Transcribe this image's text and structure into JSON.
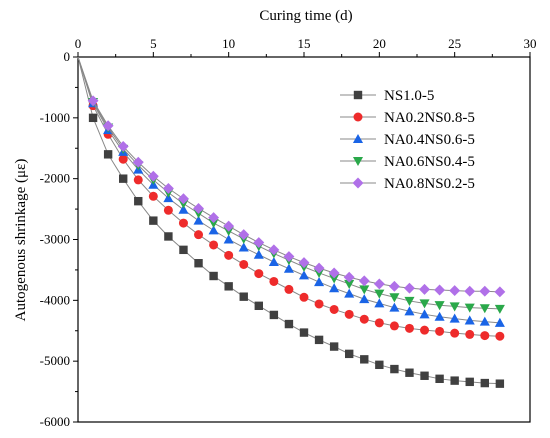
{
  "chart_data": {
    "type": "line",
    "xlabel": "Curing time (d)",
    "ylabel": "Autogenous shrinkage (με)",
    "xlim": [
      0,
      30
    ],
    "ylim": [
      -6000,
      0
    ],
    "xticks": [
      "0",
      "5",
      "10",
      "15",
      "20",
      "25",
      "30"
    ],
    "yticks": [
      "0",
      "-1000",
      "-2000",
      "-3000",
      "-4000",
      "-5000",
      "-6000"
    ],
    "x_axis_position": "top",
    "legend": "right-middle",
    "grid": false,
    "x": [
      0,
      1,
      2,
      3,
      4,
      5,
      6,
      7,
      8,
      9,
      10,
      11,
      12,
      13,
      14,
      15,
      16,
      17,
      18,
      19,
      20,
      21,
      22,
      23,
      24,
      25,
      26,
      27,
      28
    ],
    "series": [
      {
        "name": "NS1.0-5",
        "color": "#404040",
        "marker": "square",
        "values": [
          0,
          -1000,
          -1600,
          -2000,
          -2370,
          -2690,
          -2950,
          -3170,
          -3390,
          -3600,
          -3770,
          -3940,
          -4090,
          -4240,
          -4390,
          -4530,
          -4650,
          -4760,
          -4880,
          -4970,
          -5060,
          -5130,
          -5190,
          -5240,
          -5290,
          -5320,
          -5340,
          -5360,
          -5370
        ]
      },
      {
        "name": "NA0.2NS0.8-5",
        "color": "#ee2b2b",
        "marker": "circle",
        "values": [
          0,
          -800,
          -1270,
          -1680,
          -2020,
          -2290,
          -2520,
          -2730,
          -2920,
          -3090,
          -3260,
          -3410,
          -3560,
          -3690,
          -3820,
          -3950,
          -4060,
          -4150,
          -4230,
          -4310,
          -4370,
          -4420,
          -4460,
          -4490,
          -4510,
          -4540,
          -4560,
          -4580,
          -4590
        ]
      },
      {
        "name": "NA0.4NS0.6-5",
        "color": "#1a64e6",
        "marker": "triangle-up",
        "values": [
          0,
          -760,
          -1200,
          -1560,
          -1850,
          -2100,
          -2320,
          -2510,
          -2690,
          -2850,
          -3000,
          -3130,
          -3250,
          -3370,
          -3480,
          -3590,
          -3700,
          -3800,
          -3890,
          -3980,
          -4050,
          -4120,
          -4180,
          -4230,
          -4270,
          -4300,
          -4330,
          -4350,
          -4370
        ]
      },
      {
        "name": "NA0.6NS0.4-5",
        "color": "#2aa84a",
        "marker": "triangle-down",
        "values": [
          0,
          -740,
          -1160,
          -1510,
          -1780,
          -2020,
          -2230,
          -2410,
          -2570,
          -2730,
          -2860,
          -2990,
          -3110,
          -3230,
          -3340,
          -3450,
          -3550,
          -3640,
          -3730,
          -3820,
          -3890,
          -3950,
          -4010,
          -4050,
          -4080,
          -4100,
          -4120,
          -4130,
          -4140
        ]
      },
      {
        "name": "NA0.8NS0.2-5",
        "color": "#b070e8",
        "marker": "diamond",
        "values": [
          0,
          -720,
          -1130,
          -1470,
          -1730,
          -1960,
          -2160,
          -2330,
          -2490,
          -2640,
          -2780,
          -2920,
          -3050,
          -3170,
          -3280,
          -3380,
          -3470,
          -3550,
          -3620,
          -3680,
          -3730,
          -3770,
          -3800,
          -3820,
          -3830,
          -3840,
          -3850,
          -3850,
          -3860
        ]
      }
    ]
  }
}
